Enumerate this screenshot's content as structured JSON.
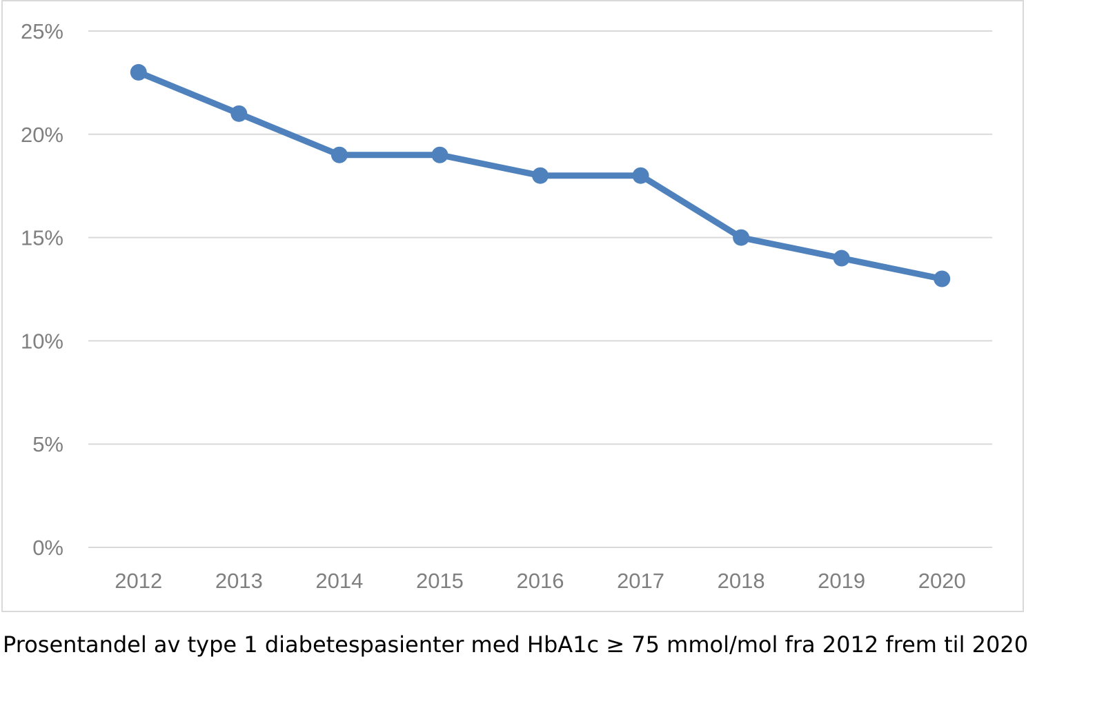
{
  "caption": "Prosentandel av type 1 diabetespasienter med HbA1c ≥ 75 mmol/mol fra 2012 frem til 2020",
  "chart_data": {
    "type": "line",
    "title": "",
    "xlabel": "",
    "ylabel": "",
    "categories": [
      "2012",
      "2013",
      "2014",
      "2015",
      "2016",
      "2017",
      "2018",
      "2019",
      "2020"
    ],
    "series": [
      {
        "values": [
          23,
          21,
          19,
          19,
          18,
          18,
          15,
          14,
          13
        ],
        "color": "#4f81bd"
      }
    ],
    "y_ticks": [
      0,
      5,
      10,
      15,
      20,
      25
    ],
    "y_tick_labels": [
      "0%",
      "5%",
      "10%",
      "15%",
      "20%",
      "25%"
    ],
    "ylim": [
      0,
      25
    ],
    "grid": true,
    "legend": "none",
    "gridline_color": "#d9d9d9",
    "tick_label_color": "#7f7f7f"
  }
}
